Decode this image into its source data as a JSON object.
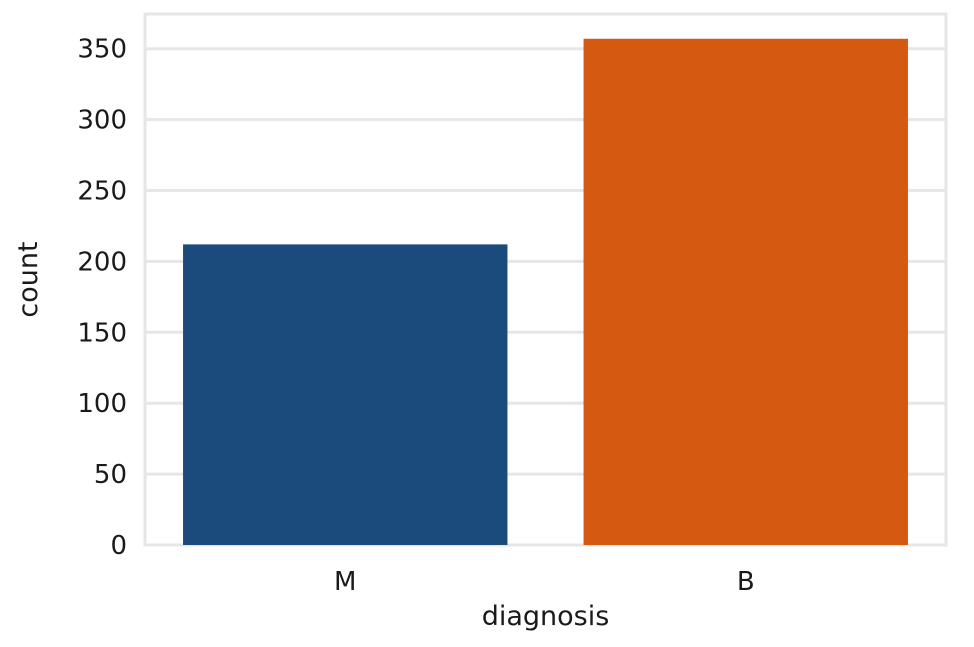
{
  "chart_data": {
    "type": "bar",
    "categories": [
      "M",
      "B"
    ],
    "values": [
      212,
      357
    ],
    "colors": [
      "#1a4b7c",
      "#d45a12"
    ],
    "xlabel": "diagnosis",
    "ylabel": "count",
    "ylim": [
      0,
      375
    ],
    "yticks": [
      0,
      50,
      100,
      150,
      200,
      250,
      300,
      350
    ],
    "grid": "horizontal",
    "legend": "none"
  }
}
